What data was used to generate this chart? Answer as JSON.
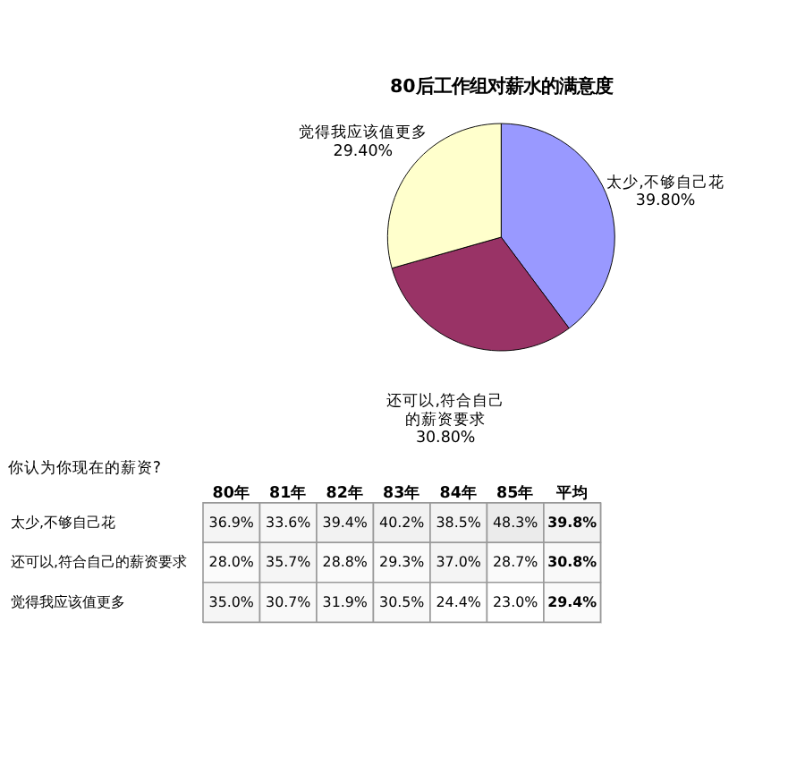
{
  "chart_data": [
    {
      "type": "pie",
      "title": "80后工作组对薪水的满意度",
      "categories": [
        "太少,不够自己花",
        "还可以,符合自己的薪资要求",
        "觉得我应该值更多"
      ],
      "values": [
        39.8,
        30.8,
        29.4
      ],
      "colors": [
        "#9999ff",
        "#993366",
        "#ffffcc"
      ],
      "value_labels": [
        "39.80%",
        "30.80%",
        "29.40%"
      ]
    },
    {
      "type": "heatmap",
      "ylabel": "你认为你现在的薪资?",
      "categories": [
        "80年",
        "81年",
        "82年",
        "83年",
        "84年",
        "85年",
        "平均"
      ],
      "y_categories": [
        "太少,不够自己花",
        "还可以,符合自己的薪资要求",
        "觉得我应该值更多"
      ],
      "cells": [
        [
          36.9,
          33.6,
          39.4,
          40.2,
          38.5,
          48.3,
          39.8
        ],
        [
          28.0,
          35.7,
          28.8,
          29.3,
          37.0,
          28.7,
          30.8
        ],
        [
          35.0,
          30.7,
          31.9,
          30.5,
          24.4,
          23.0,
          29.4
        ]
      ],
      "cell_labels": [
        [
          "36.9%",
          "33.6%",
          "39.4%",
          "40.2%",
          "38.5%",
          "48.3%",
          "39.8%"
        ],
        [
          "28.0%",
          "35.7%",
          "28.8%",
          "29.3%",
          "37.0%",
          "28.7%",
          "30.8%"
        ],
        [
          "35.0%",
          "30.7%",
          "31.9%",
          "30.5%",
          "24.4%",
          "23.0%",
          "29.4%"
        ]
      ]
    }
  ]
}
